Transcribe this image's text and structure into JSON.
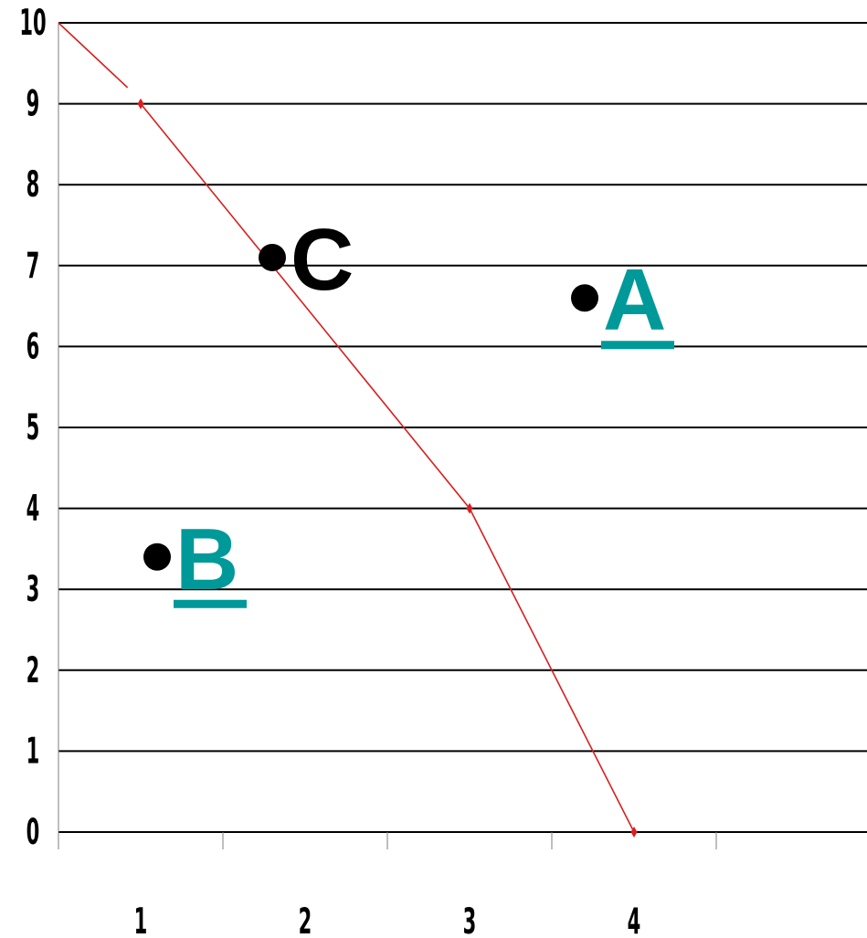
{
  "chart_data": {
    "type": "line",
    "title": "",
    "xlabel": "",
    "ylabel": "",
    "categories": [
      "1",
      "2",
      "3",
      "4"
    ],
    "xlim": [
      0.5,
      5.4
    ],
    "ylim": [
      0,
      10
    ],
    "yticks": [
      0,
      1,
      2,
      3,
      4,
      5,
      6,
      7,
      8,
      9,
      10
    ],
    "grid": "horizontal",
    "legend": "none",
    "line_color": "#d81f1f",
    "series": [
      {
        "points": [
          {
            "x": 1,
            "y": 9
          },
          {
            "x": 3,
            "y": 4
          },
          {
            "x": 4,
            "y": 0
          }
        ],
        "extension": [
          {
            "x": 0.5,
            "y": 10
          },
          {
            "x": 0.92,
            "y": 9.2
          }
        ]
      }
    ],
    "point_labels": [
      {
        "text": "A",
        "x": 3.7,
        "y": 6.6,
        "color": "#009999",
        "underline": true
      },
      {
        "text": "B",
        "x": 1.1,
        "y": 3.4,
        "color": "#009999",
        "underline": true
      },
      {
        "text": "C",
        "x": 1.8,
        "y": 7.1,
        "color": "#000000",
        "underline": false
      }
    ]
  }
}
